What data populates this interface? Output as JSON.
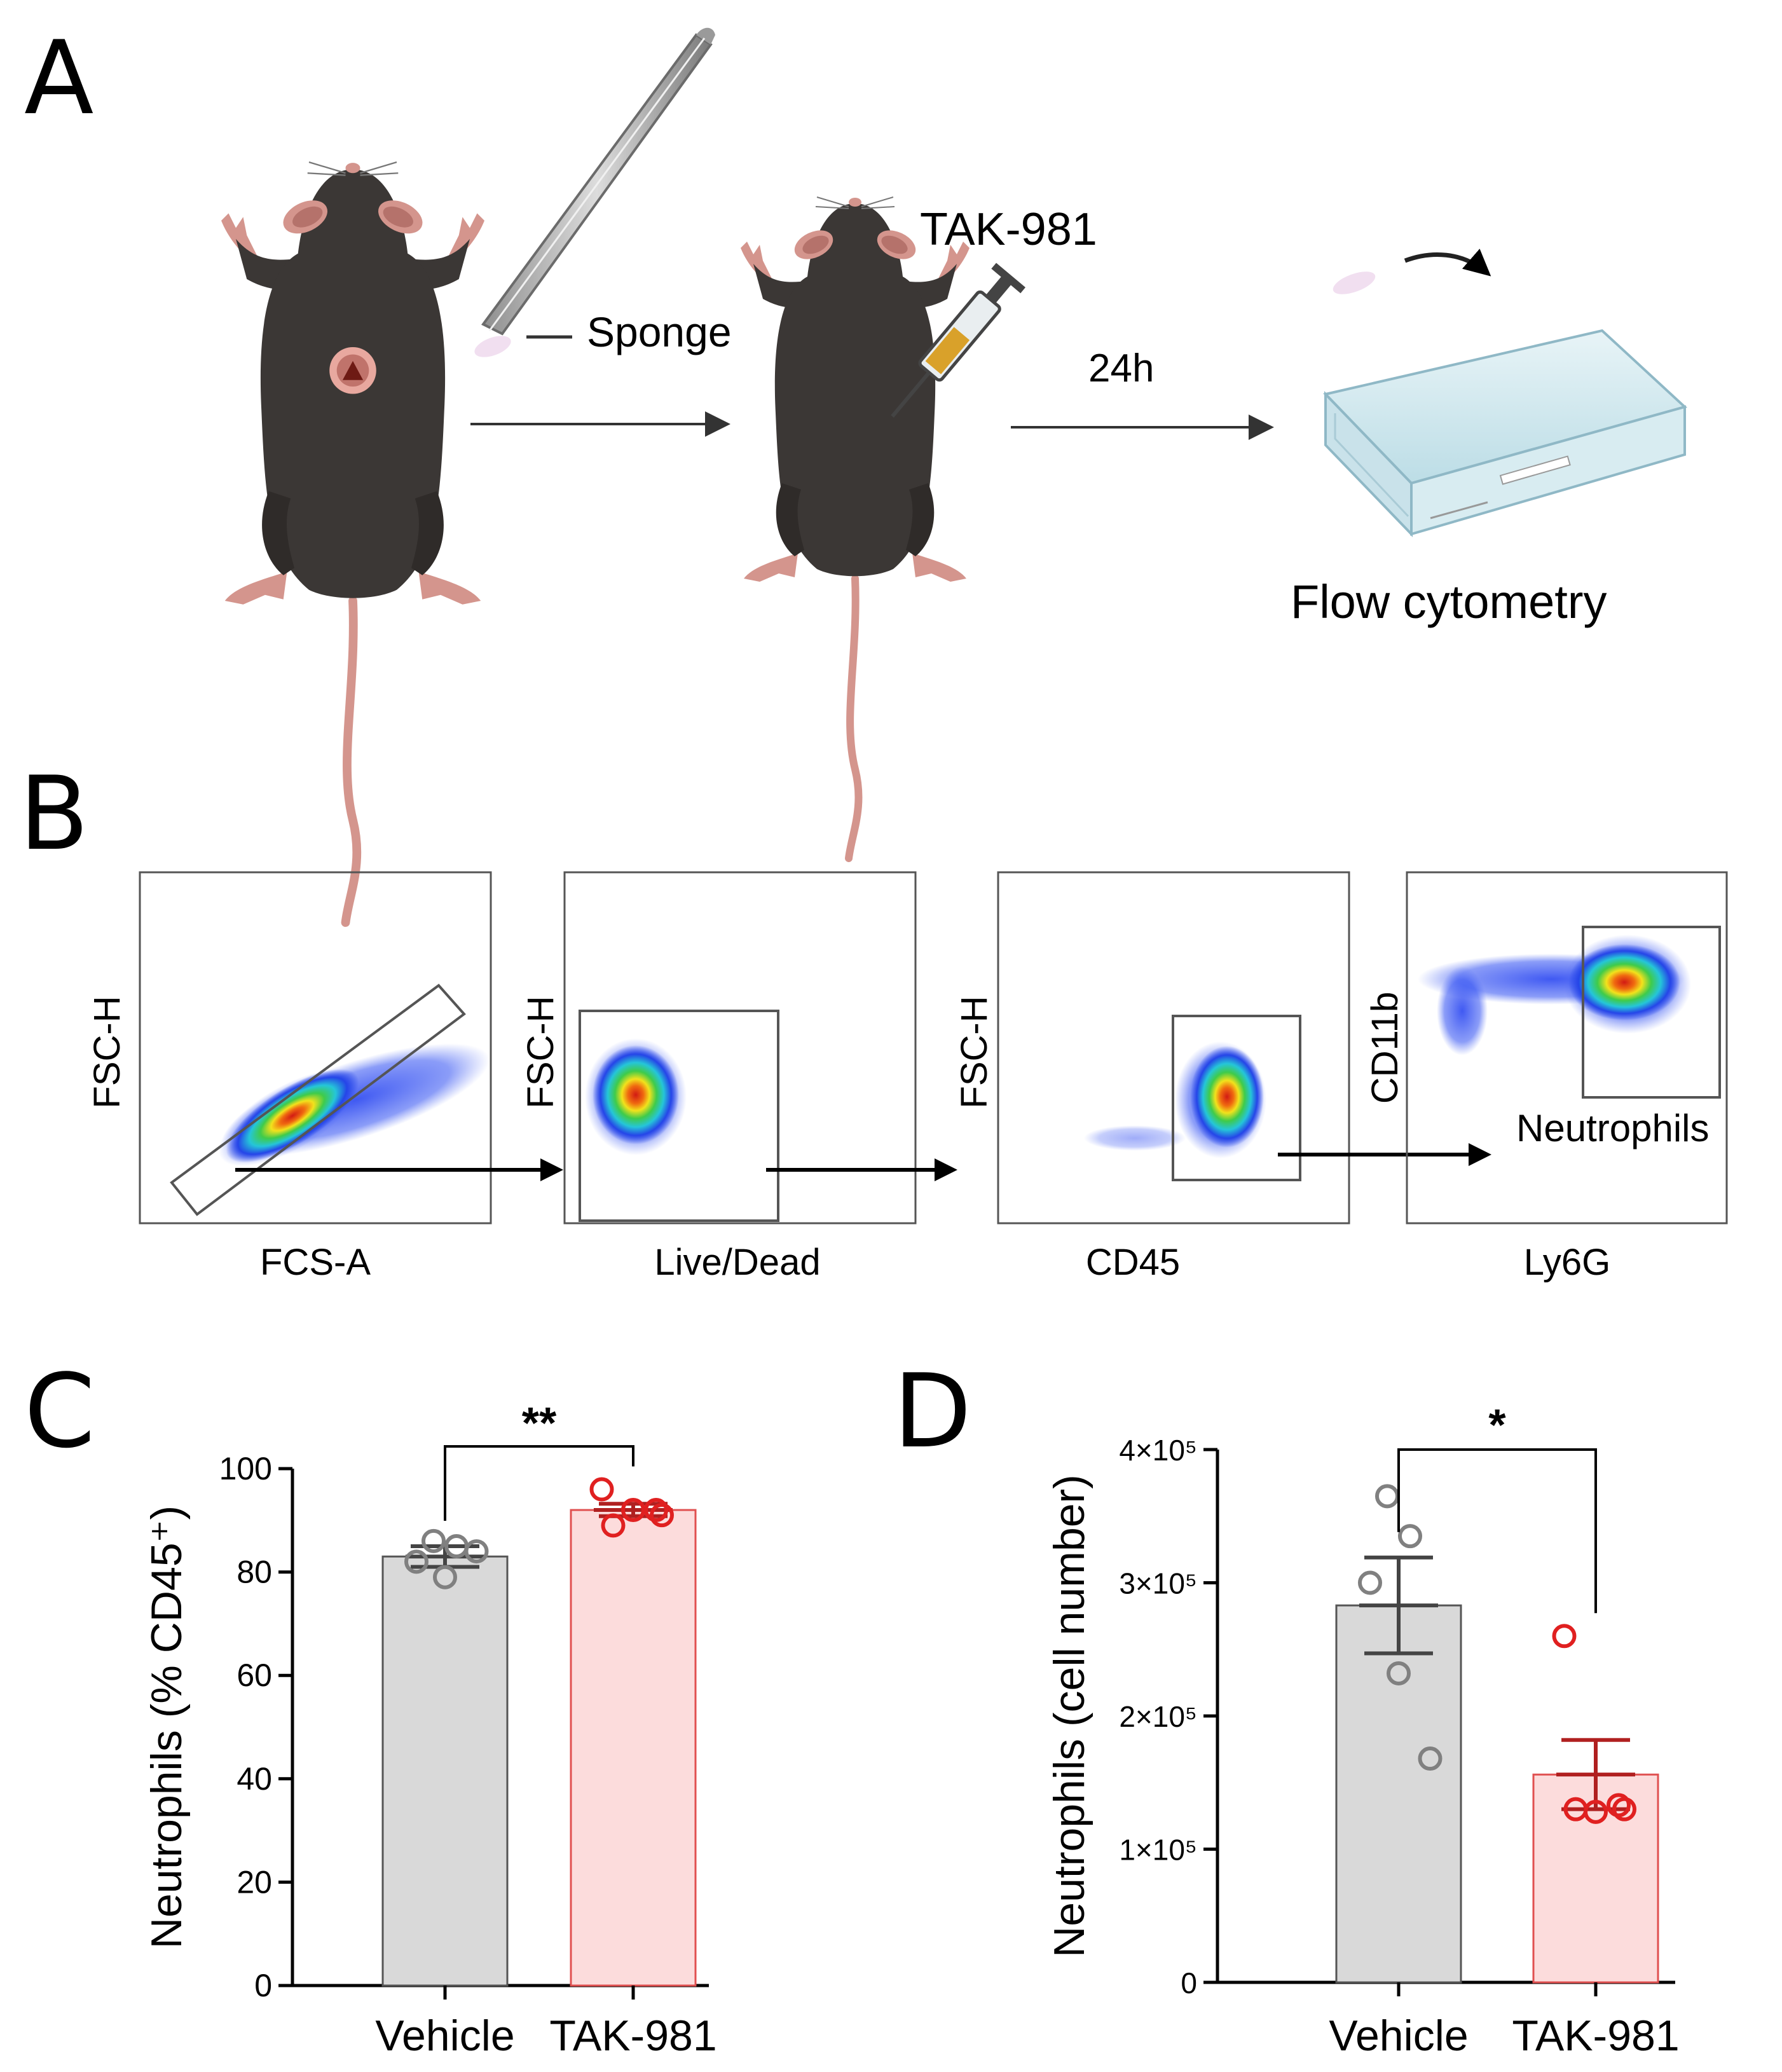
{
  "panels": {
    "A": {
      "letter": "A",
      "labels": {
        "sponge": "Sponge",
        "drug": "TAK-981",
        "time": "24h",
        "readout": "Flow cytometry"
      },
      "icons": [
        "mouse-with-implant-icon",
        "forceps-icon",
        "mouse-injected-icon",
        "syringe-icon",
        "sponge-icon",
        "well-plate-icon"
      ]
    },
    "B": {
      "letter": "B",
      "gates": [
        {
          "x_label": "FCS-A",
          "y_label": "FSC-H",
          "gate_label": ""
        },
        {
          "x_label": "Live/Dead",
          "y_label": "FSC-H",
          "gate_label": ""
        },
        {
          "x_label": "CD45",
          "y_label": "FSC-H",
          "gate_label": ""
        },
        {
          "x_label": "Ly6G",
          "y_label": "CD11b",
          "gate_label": "Neutrophils"
        }
      ]
    },
    "C": {
      "letter": "C"
    },
    "D": {
      "letter": "D"
    }
  },
  "colors": {
    "vehicle_fill": "#d9d9d9",
    "vehicle_stroke": "#555555",
    "vehicle_point": "#808080",
    "tak_fill": "#fcdcdc",
    "tak_stroke": "#e05050",
    "tak_point": "#e02020",
    "tak_errbar": "#b02020",
    "mouse_body": "#3b3735",
    "mouse_pink": "#d9918a"
  },
  "chart_data": [
    {
      "id": "C",
      "type": "bar",
      "title": "",
      "ylabel": "Neutrophils (% CD45⁺)",
      "xlabel": "",
      "categories": [
        "Vehicle",
        "TAK-981"
      ],
      "values": [
        83,
        92
      ],
      "sem": [
        2,
        1.2
      ],
      "points": [
        [
          86,
          85,
          82,
          79,
          84
        ],
        [
          96,
          91,
          92,
          89,
          92
        ]
      ],
      "ylim": [
        0,
        100
      ],
      "yticks": [
        0,
        20,
        40,
        60,
        80,
        100
      ],
      "ytick_labels": [
        "0",
        "20",
        "40",
        "60",
        "80",
        "100"
      ],
      "significance": "**"
    },
    {
      "id": "D",
      "type": "bar",
      "title": "",
      "ylabel": "Neutrophils (cell number)",
      "xlabel": "",
      "categories": [
        "Vehicle",
        "TAK-981"
      ],
      "values": [
        283000,
        156000
      ],
      "sem": [
        36000,
        26000
      ],
      "points": [
        [
          365000,
          335000,
          300000,
          232000,
          168000
        ],
        [
          260000,
          130000,
          128000,
          130000,
          133000
        ]
      ],
      "ylim": [
        0,
        400000
      ],
      "yticks": [
        0,
        100000,
        200000,
        300000,
        400000
      ],
      "ytick_labels": [
        "0",
        "1×10⁵",
        "2×10⁵",
        "3×10⁵",
        "4×10⁵"
      ],
      "significance": "*"
    }
  ]
}
